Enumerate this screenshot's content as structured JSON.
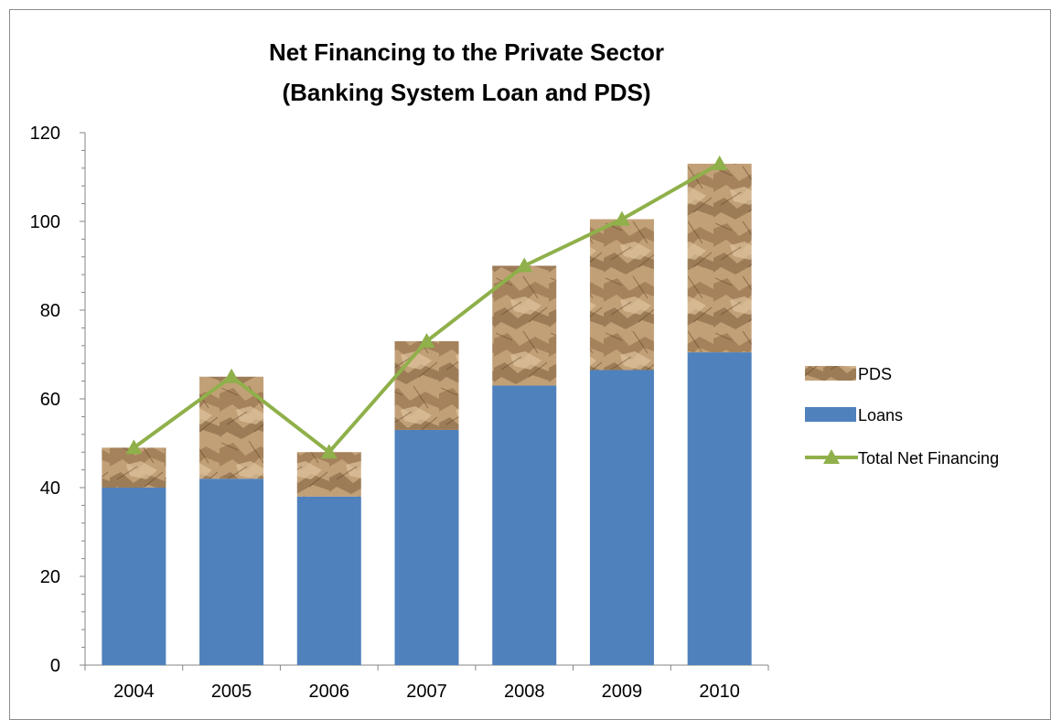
{
  "chart_data": {
    "type": "bar",
    "title": "Net Financing to the Private Sector",
    "subtitle": "(Banking System Loan and PDS)",
    "categories": [
      "2004",
      "2005",
      "2006",
      "2007",
      "2008",
      "2009",
      "2010"
    ],
    "series": [
      {
        "name": "Loans",
        "kind": "stacked-bar",
        "color": "#4f81bd",
        "values": [
          40,
          42,
          38,
          53,
          63,
          66.5,
          70.5
        ]
      },
      {
        "name": "PDS",
        "kind": "stacked-bar",
        "color": "#c2a077",
        "values": [
          9,
          23,
          10,
          20,
          27,
          34,
          42.5
        ]
      },
      {
        "name": "Total Net Financing",
        "kind": "line",
        "marker": "triangle",
        "color": "#8fb04a",
        "values": [
          49,
          65,
          48,
          73,
          90,
          100.5,
          113
        ]
      }
    ],
    "yticks": [
      "0",
      "20",
      "40",
      "60",
      "80",
      "100",
      "120"
    ],
    "ylim": [
      0,
      120
    ],
    "grid": false,
    "legend": {
      "position": "right",
      "order": [
        "PDS",
        "Loans",
        "Total Net Financing"
      ]
    }
  }
}
